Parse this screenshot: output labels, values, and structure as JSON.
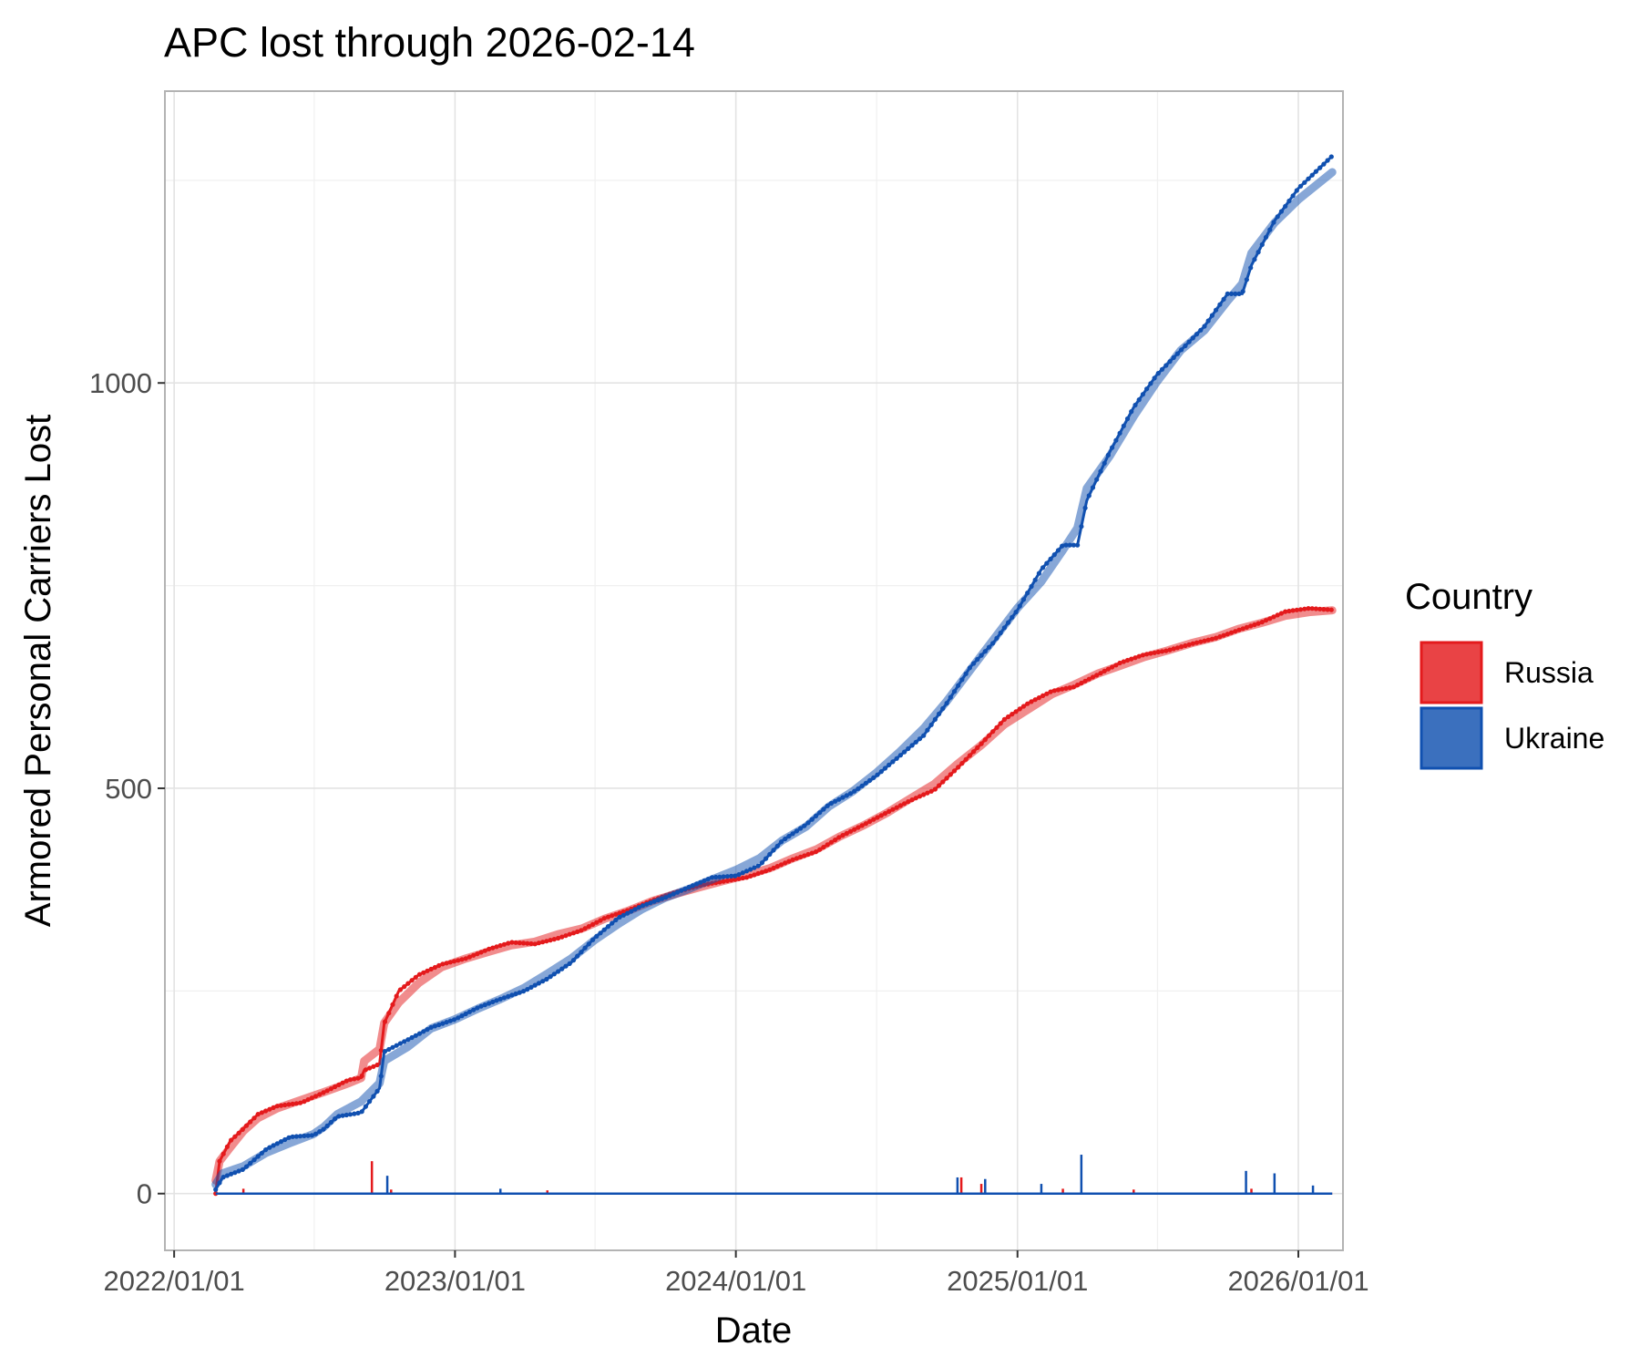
{
  "chart_data": {
    "type": "line",
    "title": "APC lost through 2026-02-14",
    "xlabel": "Date",
    "ylabel": "Armored Personal Carriers Lost",
    "x_ticks": [
      "2022/01/01",
      "2023/01/01",
      "2024/01/01",
      "2025/01/01",
      "2026/01/01"
    ],
    "y_ticks": [
      0,
      500,
      1000
    ],
    "xlim": [
      "2021-12-20",
      "2026-02-28"
    ],
    "ylim": [
      -70,
      1360
    ],
    "grid": true,
    "legend": {
      "title": "Country",
      "placement": "right"
    },
    "series": [
      {
        "name": "Russia",
        "color": "#e41a1c",
        "cumulative": [
          [
            "2022-02-24",
            0
          ],
          [
            "2022-03-01",
            40
          ],
          [
            "2022-03-15",
            65
          ],
          [
            "2022-04-01",
            80
          ],
          [
            "2022-04-20",
            98
          ],
          [
            "2022-05-15",
            108
          ],
          [
            "2022-06-15",
            112
          ],
          [
            "2022-07-15",
            125
          ],
          [
            "2022-08-15",
            140
          ],
          [
            "2022-09-01",
            143
          ],
          [
            "2022-09-05",
            152
          ],
          [
            "2022-09-25",
            160
          ],
          [
            "2022-10-01",
            210
          ],
          [
            "2022-10-20",
            250
          ],
          [
            "2022-11-15",
            270
          ],
          [
            "2022-12-15",
            283
          ],
          [
            "2023-01-15",
            290
          ],
          [
            "2023-02-15",
            302
          ],
          [
            "2023-03-15",
            310
          ],
          [
            "2023-04-15",
            308
          ],
          [
            "2023-05-15",
            315
          ],
          [
            "2023-06-15",
            325
          ],
          [
            "2023-07-15",
            340
          ],
          [
            "2023-08-15",
            350
          ],
          [
            "2023-09-15",
            362
          ],
          [
            "2023-10-15",
            372
          ],
          [
            "2023-11-15",
            380
          ],
          [
            "2023-12-15",
            385
          ],
          [
            "2024-01-15",
            390
          ],
          [
            "2024-02-15",
            400
          ],
          [
            "2024-03-15",
            412
          ],
          [
            "2024-04-15",
            422
          ],
          [
            "2024-05-15",
            440
          ],
          [
            "2024-06-15",
            455
          ],
          [
            "2024-07-15",
            470
          ],
          [
            "2024-08-15",
            485
          ],
          [
            "2024-09-15",
            498
          ],
          [
            "2024-10-15",
            525
          ],
          [
            "2024-11-15",
            555
          ],
          [
            "2024-12-15",
            585
          ],
          [
            "2025-01-15",
            605
          ],
          [
            "2025-02-15",
            620
          ],
          [
            "2025-03-15",
            625
          ],
          [
            "2025-04-15",
            640
          ],
          [
            "2025-05-15",
            655
          ],
          [
            "2025-06-15",
            665
          ],
          [
            "2025-07-15",
            670
          ],
          [
            "2025-08-15",
            678
          ],
          [
            "2025-09-15",
            685
          ],
          [
            "2025-10-15",
            695
          ],
          [
            "2025-11-15",
            705
          ],
          [
            "2025-12-15",
            718
          ],
          [
            "2026-01-15",
            722
          ],
          [
            "2026-02-14",
            720
          ]
        ],
        "daily_spikes": [
          [
            "2022-09-15",
            40
          ],
          [
            "2022-04-01",
            6
          ],
          [
            "2022-10-10",
            5
          ],
          [
            "2023-05-01",
            4
          ],
          [
            "2024-10-20",
            20
          ],
          [
            "2024-11-15",
            12
          ],
          [
            "2025-03-01",
            6
          ],
          [
            "2025-06-01",
            5
          ],
          [
            "2025-11-01",
            6
          ]
        ]
      },
      {
        "name": "Ukraine",
        "color": "#1050b0",
        "cumulative": [
          [
            "2022-02-24",
            5
          ],
          [
            "2022-03-05",
            20
          ],
          [
            "2022-04-01",
            30
          ],
          [
            "2022-05-01",
            55
          ],
          [
            "2022-06-01",
            70
          ],
          [
            "2022-07-01",
            72
          ],
          [
            "2022-07-15",
            80
          ],
          [
            "2022-08-01",
            95
          ],
          [
            "2022-09-01",
            100
          ],
          [
            "2022-09-25",
            130
          ],
          [
            "2022-10-01",
            175
          ],
          [
            "2022-11-01",
            190
          ],
          [
            "2022-12-01",
            205
          ],
          [
            "2023-01-01",
            215
          ],
          [
            "2023-02-01",
            230
          ],
          [
            "2023-03-01",
            240
          ],
          [
            "2023-04-01",
            250
          ],
          [
            "2023-05-01",
            265
          ],
          [
            "2023-06-01",
            285
          ],
          [
            "2023-07-01",
            315
          ],
          [
            "2023-08-01",
            340
          ],
          [
            "2023-09-01",
            355
          ],
          [
            "2023-10-01",
            365
          ],
          [
            "2023-11-01",
            378
          ],
          [
            "2023-12-01",
            390
          ],
          [
            "2024-01-01",
            392
          ],
          [
            "2024-02-01",
            405
          ],
          [
            "2024-03-01",
            435
          ],
          [
            "2024-04-01",
            455
          ],
          [
            "2024-05-01",
            480
          ],
          [
            "2024-06-01",
            495
          ],
          [
            "2024-07-01",
            515
          ],
          [
            "2024-08-01",
            540
          ],
          [
            "2024-09-01",
            565
          ],
          [
            "2024-10-01",
            605
          ],
          [
            "2024-11-01",
            650
          ],
          [
            "2024-12-01",
            680
          ],
          [
            "2025-01-01",
            720
          ],
          [
            "2025-02-01",
            770
          ],
          [
            "2025-03-01",
            800
          ],
          [
            "2025-03-20",
            800
          ],
          [
            "2025-04-01",
            855
          ],
          [
            "2025-05-01",
            915
          ],
          [
            "2025-06-01",
            970
          ],
          [
            "2025-07-01",
            1010
          ],
          [
            "2025-08-01",
            1040
          ],
          [
            "2025-09-01",
            1070
          ],
          [
            "2025-10-01",
            1110
          ],
          [
            "2025-10-20",
            1110
          ],
          [
            "2025-11-01",
            1145
          ],
          [
            "2025-12-01",
            1200
          ],
          [
            "2026-01-01",
            1240
          ],
          [
            "2026-02-14",
            1280
          ]
        ],
        "daily_spikes": [
          [
            "2025-03-25",
            48
          ],
          [
            "2022-10-05",
            22
          ],
          [
            "2025-10-25",
            28
          ],
          [
            "2025-12-01",
            25
          ],
          [
            "2024-10-15",
            20
          ],
          [
            "2024-11-20",
            18
          ],
          [
            "2025-02-01",
            12
          ],
          [
            "2026-01-20",
            10
          ],
          [
            "2023-03-01",
            6
          ]
        ]
      }
    ]
  }
}
